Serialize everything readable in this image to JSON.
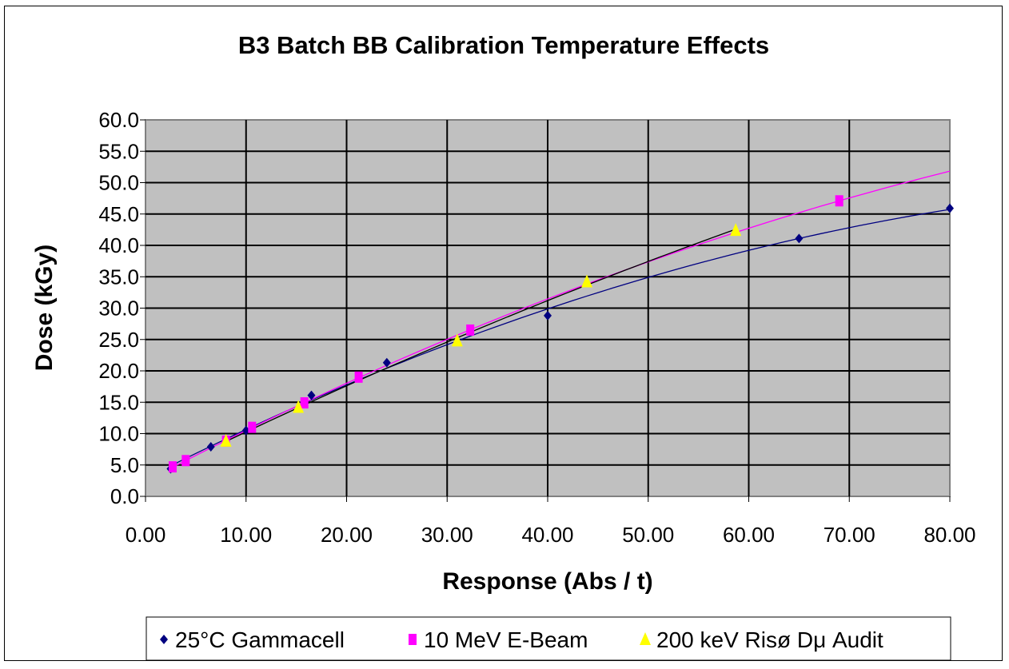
{
  "chart_data": {
    "type": "scatter",
    "title": "B3 Batch BB Calibration Temperature Effects",
    "xlabel": "Response (Abs / t)",
    "ylabel": "Dose (kGy)",
    "xlim": [
      0,
      80
    ],
    "ylim": [
      0,
      60
    ],
    "xticks": [
      "0.00",
      "10.00",
      "20.00",
      "30.00",
      "40.00",
      "50.00",
      "60.00",
      "70.00",
      "80.00"
    ],
    "yticks": [
      "0.0",
      "5.0",
      "10.0",
      "15.0",
      "20.0",
      "25.0",
      "30.0",
      "35.0",
      "40.0",
      "45.0",
      "50.0",
      "55.0",
      "60.0"
    ],
    "grid": true,
    "legend_position": "bottom",
    "series": [
      {
        "name": "25°C Gammacell",
        "marker": "diamond",
        "color": "#000080",
        "trend_color": "#000080",
        "trend_range": [
          2.5,
          80
        ],
        "x": [
          2.5,
          6.5,
          10,
          16.5,
          24,
          40,
          65,
          80
        ],
        "y": [
          4.4,
          7.9,
          10.5,
          16.1,
          21.3,
          28.8,
          41.1,
          45.9
        ]
      },
      {
        "name": "10 MeV E-Beam",
        "marker": "square",
        "color": "#FF00FF",
        "trend_color": "#FF00FF",
        "trend_range": [
          2.7,
          80
        ],
        "x": [
          2.7,
          4,
          8,
          10.6,
          15.8,
          21.2,
          32.3,
          69
        ],
        "y": [
          4.7,
          5.7,
          8.8,
          11,
          14.9,
          19,
          26.5,
          47.1
        ]
      },
      {
        "name": "200 keV Risø Dμ Audit",
        "marker": "triangle",
        "color": "#FFFF00",
        "trend_color": "#000000",
        "trend_range": [
          8,
          58.7
        ],
        "x": [
          8,
          15.2,
          31,
          43.9,
          58.7
        ],
        "y": [
          8.8,
          14.2,
          24.8,
          34.2,
          42.4
        ]
      }
    ]
  }
}
